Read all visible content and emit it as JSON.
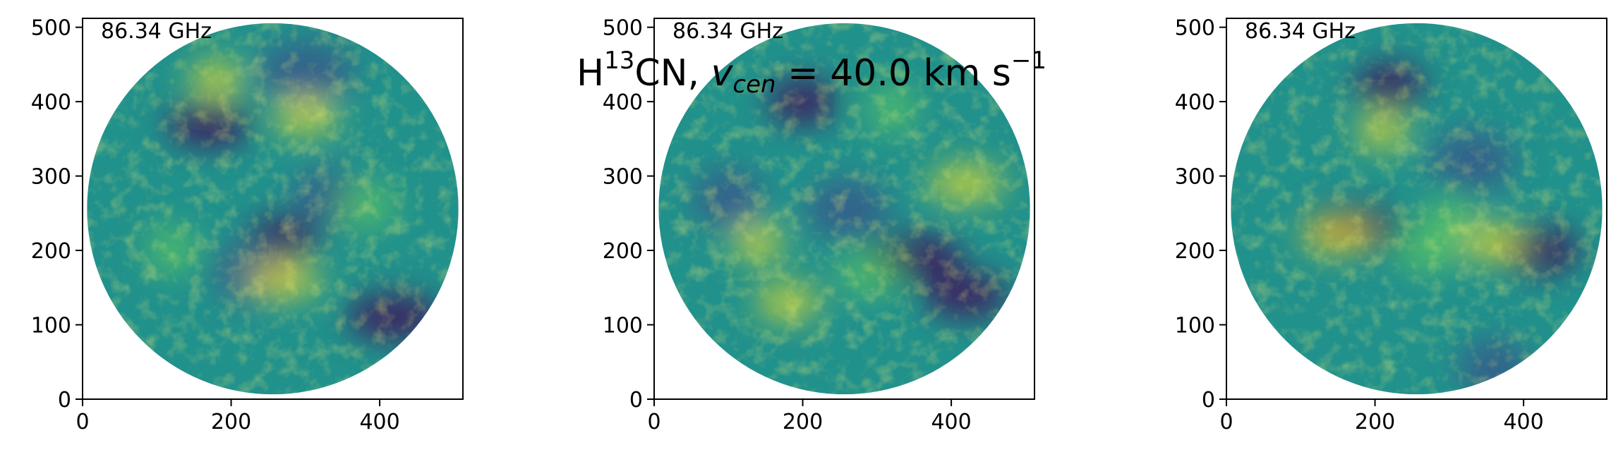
{
  "chart_data": {
    "type": "heatmap",
    "title": {
      "molecule_prefix": "H",
      "molecule_isotope": "13",
      "molecule_suffix": "CN, ",
      "variable": "v",
      "variable_sub": "cen",
      "equals_value": " =  40.0 km s",
      "unit_exponent": "−1"
    },
    "colormap": "viridis",
    "colormap_stops": [
      "#440154",
      "#3b528b",
      "#21918c",
      "#5ec962",
      "#fde725"
    ],
    "panels": [
      {
        "label": "86.34 GHz",
        "xlim": [
          0,
          512
        ],
        "ylim": [
          0,
          512
        ],
        "xticks": [
          "0",
          "200",
          "400"
        ],
        "yticks": [
          "0",
          "100",
          "200",
          "300",
          "400",
          "500"
        ],
        "map_shape": "circle",
        "map_center": [
          256,
          256
        ],
        "map_radius": 250,
        "dark_spots": [
          [
            270,
            215
          ],
          [
            230,
            170
          ],
          [
            420,
            110
          ],
          [
            330,
            270
          ],
          [
            170,
            370
          ],
          [
            300,
            440
          ]
        ],
        "bright_spots": [
          [
            180,
            430
          ],
          [
            380,
            260
          ],
          [
            270,
            160
          ],
          [
            120,
            200
          ],
          [
            300,
            380
          ]
        ]
      },
      {
        "label": "86.34 GHz",
        "xlim": [
          0,
          512
        ],
        "ylim": [
          0,
          512
        ],
        "xticks": [
          "0",
          "200",
          "400"
        ],
        "yticks": [
          "0",
          "100",
          "200",
          "300",
          "400",
          "500"
        ],
        "map_shape": "circle",
        "map_center": [
          256,
          256
        ],
        "map_radius": 250,
        "dark_spots": [
          [
            200,
            400
          ],
          [
            260,
            255
          ],
          [
            350,
            190
          ],
          [
            100,
            270
          ],
          [
            420,
            140
          ]
        ],
        "bright_spots": [
          [
            140,
            210
          ],
          [
            290,
            170
          ],
          [
            420,
            290
          ],
          [
            320,
            390
          ],
          [
            180,
            130
          ]
        ]
      },
      {
        "label": "86.34 GHz",
        "xlim": [
          0,
          512
        ],
        "ylim": [
          0,
          512
        ],
        "xticks": [
          "0",
          "200",
          "400"
        ],
        "yticks": [
          "0",
          "100",
          "200",
          "300",
          "400",
          "500"
        ],
        "map_shape": "circle",
        "map_center": [
          256,
          256
        ],
        "map_radius": 250,
        "dark_spots": [
          [
            220,
            420
          ],
          [
            330,
            320
          ],
          [
            170,
            230
          ],
          [
            360,
            40
          ],
          [
            420,
            200
          ]
        ],
        "bright_spots": [
          [
            210,
            360
          ],
          [
            270,
            200
          ],
          [
            150,
            220
          ],
          [
            300,
            240
          ],
          [
            360,
            210
          ]
        ]
      }
    ]
  }
}
